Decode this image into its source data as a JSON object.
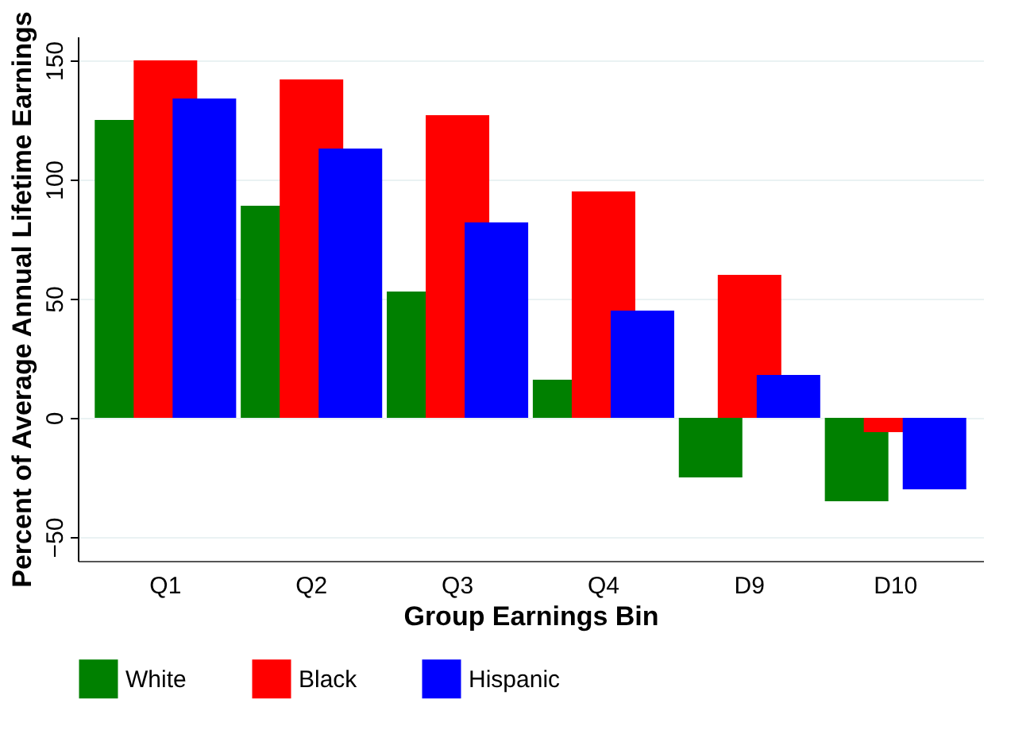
{
  "chart_data": {
    "type": "bar",
    "xlabel": "Group Earnings Bin",
    "ylabel": "Percent of Average Annual Lifetime Earnings",
    "categories": [
      "Q1",
      "Q2",
      "Q3",
      "Q4",
      "D9",
      "D10"
    ],
    "series": [
      {
        "name": "White",
        "color": "#008000",
        "values": [
          125,
          89,
          53,
          16,
          -25,
          -35
        ]
      },
      {
        "name": "Black",
        "color": "#ff0000",
        "values": [
          150,
          142,
          127,
          95,
          60,
          -6
        ]
      },
      {
        "name": "Hispanic",
        "color": "#0000ff",
        "values": [
          134,
          113,
          82,
          45,
          18,
          -30
        ]
      }
    ],
    "ylim": [
      -60,
      160
    ],
    "yticks": [
      -50,
      0,
      50,
      100,
      150
    ],
    "grid": "y",
    "legend": "bottom"
  }
}
